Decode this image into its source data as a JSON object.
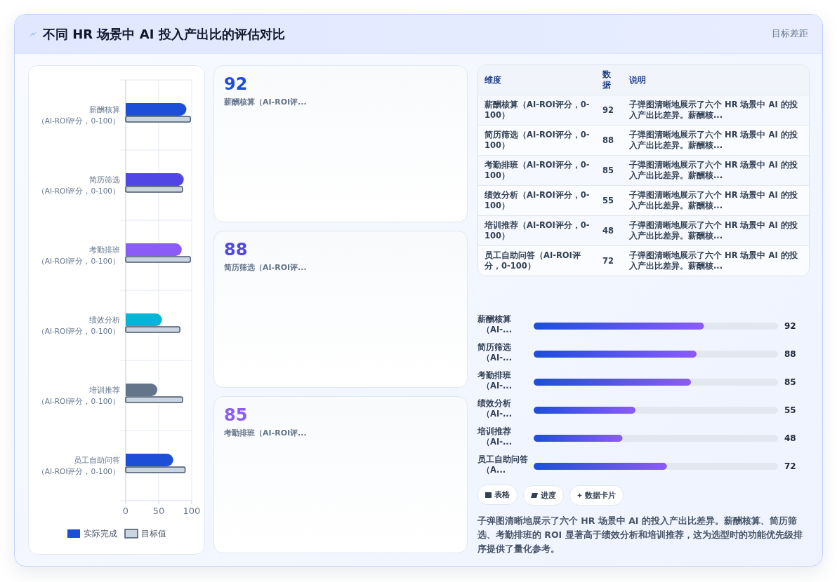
{
  "chart_data": [
    {
      "type": "other",
      "title": "不同 HR 场景中 AI 投入产出比的评估对比",
      "subtitle": "目标差距"
    },
    {
      "type": "bar",
      "orientation": "horizontal",
      "categories": [
        "薪酬核算（AI-ROI评分，0-100）",
        "简历筛选（AI-ROI评分，0-100）",
        "考勤排班（AI-ROI评分，0-100）",
        "绩效分析（AI-ROI评分，0-100）",
        "培训推荐（AI-ROI评分，0-100）",
        "员工自助问答（AI-ROI评分，0-100）"
      ],
      "series": [
        {
          "name": "实际完成",
          "color": "#1d4ed8",
          "colors": [
            "#1d4ed8",
            "#4f46e5",
            "#8b5cf6",
            "#06b6d4",
            "#64748b",
            "#1d4ed8"
          ],
          "values": [
            92,
            88,
            85,
            55,
            48,
            72
          ]
        },
        {
          "name": "目标值",
          "color": "#cbd5e1",
          "values": [
            98,
            86,
            98,
            82,
            86,
            90
          ]
        }
      ],
      "xlim": [
        0,
        100
      ],
      "xticks": [
        0,
        50,
        100
      ],
      "grid": true,
      "legend": "bottom"
    },
    {
      "type": "other",
      "categories": [
        "薪酬核算（AI-ROI评...",
        "简历筛选（AI-ROI评...",
        "考勤排班（AI-ROI评..."
      ],
      "values": [
        92,
        88,
        85
      ],
      "data_labels": true
    },
    {
      "type": "other",
      "categories": [
        "薪酬核算（AI-ROI评分，0-100）",
        "简历筛选（AI-ROI评分，0-100）",
        "考勤排班（AI-ROI评分，0-100）",
        "绩效分析（AI-ROI评分，0-100）",
        "培训推荐（AI-ROI评分，0-100）",
        "员工自助问答（AI-ROI评分，0-100）"
      ],
      "values": [
        92,
        88,
        85,
        55,
        48,
        72
      ],
      "data_labels": true,
      "annotations": [
        "维度",
        "数据",
        "说明",
        "子弹图清晰地展示了六个 HR 场景中 AI 的投入产出比差异。薪酬核...",
        "子弹图清晰地展示了六个 HR 场景中 AI 的投入产出比差异。薪酬核...",
        "子弹图清晰地展示了六个 HR 场景中 AI 的投入产出比差异。薪酬核...",
        "子弹图清晰地展示了六个 HR 场景中 AI 的投入产出比差异。薪酬核...",
        "子弹图清晰地展示了六个 HR 场景中 AI 的投入产出比差异。薪酬核...",
        "子弹图清晰地展示了六个 HR 场景中 AI 的投入产出比差异。薪酬核..."
      ]
    },
    {
      "type": "bar",
      "orientation": "horizontal",
      "categories": [
        "薪酬核算（AI-...",
        "简历筛选（AI-...",
        "考勤排班（AI-...",
        "绩效分析（AI-...",
        "培训推荐（AI-...",
        "员工自助问答（A..."
      ],
      "values": [
        92,
        88,
        85,
        55,
        48,
        72
      ],
      "color": "#1d4ed8",
      "xlim": [
        0,
        132
      ],
      "data_labels": true
    },
    {
      "type": "other",
      "annotations": [
        "表格",
        "进度",
        "数据卡片",
        "子弹图清晰地展示了六个 HR 场景中 AI 的投入产出比差异。薪酬核算、简历筛选、考勤排班的 ROI 显著高于绩效分析和培训推荐，这为选型时的功能优先级排序提供了量化参考。"
      ]
    }
  ]
}
